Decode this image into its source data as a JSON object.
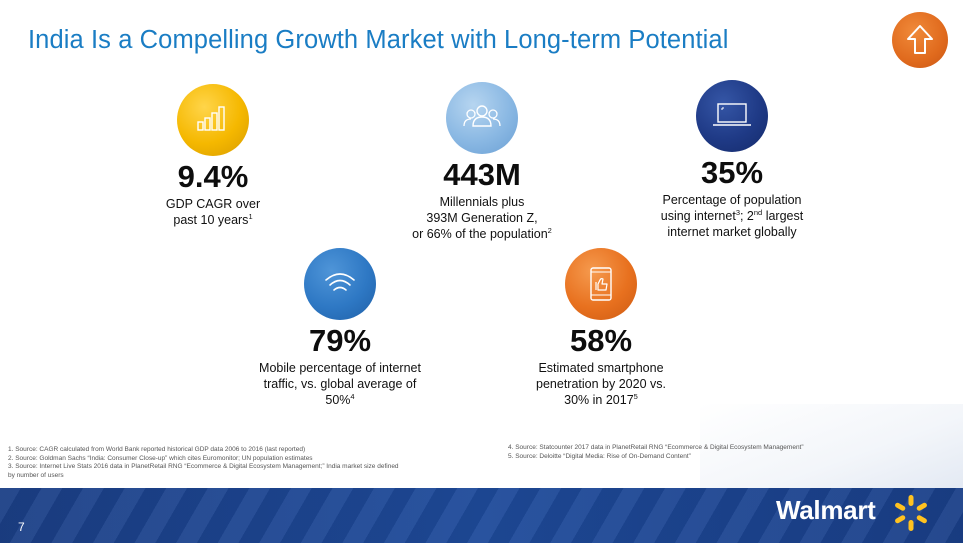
{
  "title": "India Is a Compelling Growth Market with Long-term Potential",
  "stats": [
    {
      "icon": "bar-chart-icon",
      "value": "9.4%",
      "lines": [
        "GDP CAGR over",
        "past 10 years"
      ],
      "sup": "1"
    },
    {
      "icon": "people-icon",
      "value": "443M",
      "lines": [
        "Millennials plus",
        "393M Generation Z,",
        "or 66% of the population"
      ],
      "sup": "2"
    },
    {
      "icon": "laptop-icon",
      "value": "35%",
      "line1_a": "Percentage of population",
      "line2_a": "using internet",
      "line2_sup1": "3",
      "line2_b": "; 2",
      "line2_sup2": "nd",
      "line2_c": " largest",
      "line3": "internet market globally"
    },
    {
      "icon": "wifi-icon",
      "value": "79%",
      "lines": [
        "Mobile percentage of internet",
        "traffic, vs. global average of",
        "50%"
      ],
      "sup": "4"
    },
    {
      "icon": "smartphone-thumbs-up-icon",
      "value": "58%",
      "lines": [
        "Estimated smartphone",
        "penetration by 2020 vs.",
        "30% in 2017"
      ],
      "sup": "5"
    }
  ],
  "footnotes_left": [
    "1. Source: CAGR calculated from World Bank reported historical GDP data 2006 to 2016 (last reported)",
    "2. Source: Goldman Sachs “India: Consumer Close-up” which cites Euromonitor; UN population estimates",
    "3. Source: Internet Live Stats 2016 data in PlanetRetail RNG “Ecommerce & Digital Ecosystem Management;” India market size defined",
    "by number of users"
  ],
  "footnotes_right": [
    "4. Source: Statcounter 2017 data in PlanetRetail RNG “Ecommerce & Digital Ecosystem Management”",
    "5. Source: Deloitte “Digital Media: Rise of On-Demand Content”"
  ],
  "page_number": "7",
  "logo_text": "Walmart",
  "colors": {
    "title": "#1a7dc4",
    "footer": "#1e4a9a",
    "accent_orange": "#e8711f",
    "spark": "#ffc220"
  }
}
